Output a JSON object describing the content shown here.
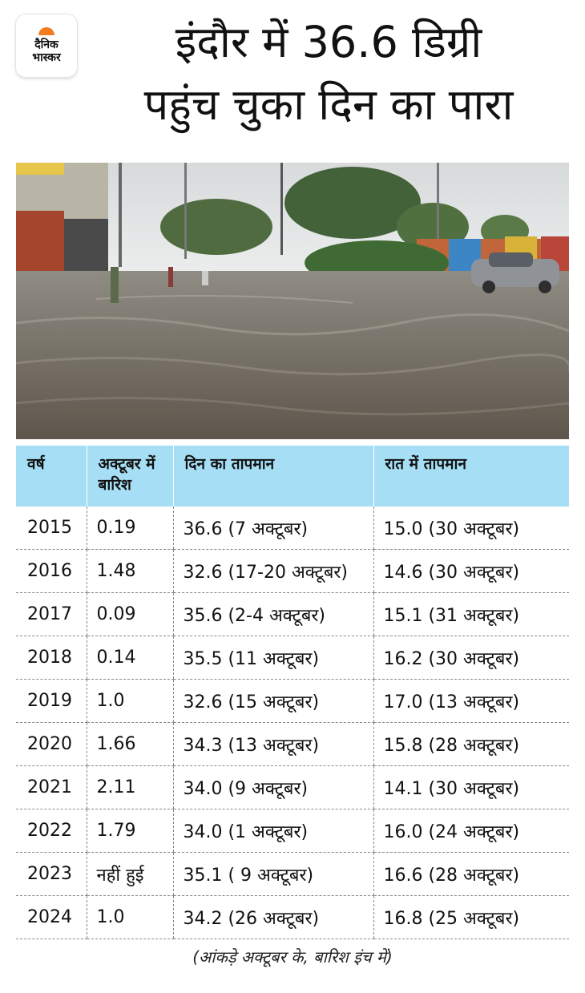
{
  "logo": {
    "line1": "दैनिक",
    "line2": "भास्कर",
    "accent_color": "#f47c20"
  },
  "title": {
    "line1": "इंदौर में 36.6 डिग्री",
    "line2": "पहुंच चुका दिन का पारा"
  },
  "photo": {
    "description_icon": "flooded-street-photo"
  },
  "table": {
    "header_color": "#a6dff5",
    "headers": [
      "वर्ष",
      "अक्टूबर में बारिश",
      "दिन का तापमान",
      "रात में तापमान"
    ],
    "rows": [
      [
        "2015",
        "0.19",
        "36.6 (7 अक्टूबर)",
        "15.0 (30 अक्टूबर)"
      ],
      [
        "2016",
        "1.48",
        "32.6 (17-20 अक्टूबर)",
        "14.6 (30 अक्टूबर)"
      ],
      [
        "2017",
        "0.09",
        "35.6 (2-4 अक्टूबर)",
        "15.1 (31 अक्टूबर)"
      ],
      [
        "2018",
        "0.14",
        "35.5 (11 अक्टूबर)",
        "16.2 (30 अक्टूबर)"
      ],
      [
        "2019",
        "1.0",
        "32.6 (15 अक्टूबर)",
        "17.0 (13 अक्टूबर)"
      ],
      [
        "2020",
        "1.66",
        "34.3 (13 अक्टूबर)",
        "15.8 (28 अक्टूबर)"
      ],
      [
        "2021",
        "2.11",
        "34.0 (9 अक्टूबर)",
        "14.1 (30 अक्टूबर)"
      ],
      [
        "2022",
        "1.79",
        "34.0 (1 अक्टूबर)",
        "16.0 (24 अक्टूबर)"
      ],
      [
        "2023",
        "नहीं हुई",
        "35.1 ( 9 अक्टूबर)",
        "16.6 (28 अक्टूबर)"
      ],
      [
        "2024",
        "1.0",
        "34.2 (26 अक्टूबर)",
        "16.8 (25 अक्टूबर)"
      ]
    ]
  },
  "note": "(आंकड़े अक्टूबर के, बारिश इंच में)"
}
